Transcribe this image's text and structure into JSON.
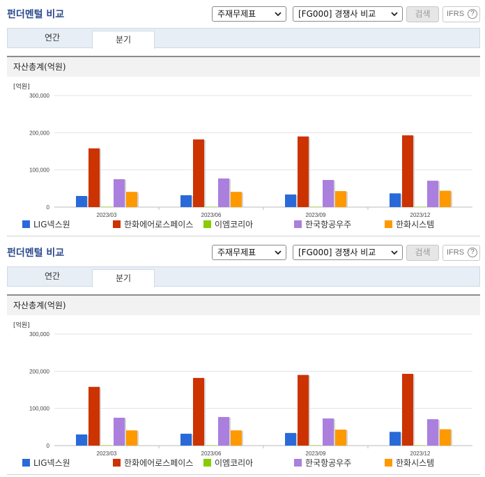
{
  "panels": [
    {
      "title": "펀더멘털 비교",
      "selects": {
        "report": "주재무제표",
        "compare": "[FG000] 경쟁사 비교"
      },
      "search_label": "검색",
      "ifrs_label": "IFRS",
      "tabs": [
        {
          "label": "연간"
        },
        {
          "label": "분기",
          "active": true
        }
      ],
      "section_title": "자산총계(억원)"
    },
    {
      "title": "펀더멘털 비교",
      "selects": {
        "report": "주재무제표",
        "compare": "[FG000] 경쟁사 비교"
      },
      "search_label": "검색",
      "ifrs_label": "IFRS",
      "tabs": [
        {
          "label": "연간"
        },
        {
          "label": "분기",
          "active": true
        }
      ],
      "section_title": "자산총계(억원)"
    }
  ],
  "chart_data": [
    {
      "type": "bar",
      "unit_label": "[억원]",
      "categories": [
        "2023/03",
        "2023/06",
        "2023/09",
        "2023/12"
      ],
      "ylim": [
        0,
        300000
      ],
      "yticks": [
        "0",
        "100,000",
        "200,000",
        "300,000"
      ],
      "grid": true,
      "legend_position": "bottom",
      "series": [
        {
          "name": "LIG넥스원",
          "color": "#2a6ad8",
          "values": [
            30000,
            32000,
            34000,
            37000
          ]
        },
        {
          "name": "한화에어로스페이스",
          "color": "#cc3300",
          "values": [
            158000,
            182000,
            190000,
            193000
          ]
        },
        {
          "name": "이엠코리아",
          "color": "#88cc00",
          "values": [
            1000,
            1000,
            1000,
            1000
          ]
        },
        {
          "name": "한국항공우주",
          "color": "#aa7fdd",
          "values": [
            75000,
            77000,
            73000,
            71000
          ]
        },
        {
          "name": "한화시스템",
          "color": "#ff9900",
          "values": [
            41000,
            41000,
            43000,
            44000
          ]
        }
      ]
    },
    {
      "type": "bar",
      "unit_label": "[억원]",
      "categories": [
        "2023/03",
        "2023/06",
        "2023/09",
        "2023/12"
      ],
      "ylim": [
        0,
        300000
      ],
      "yticks": [
        "0",
        "100,000",
        "200,000",
        "300,000"
      ],
      "grid": true,
      "legend_position": "bottom",
      "series": [
        {
          "name": "LIG넥스원",
          "color": "#2a6ad8",
          "values": [
            30000,
            32000,
            34000,
            37000
          ]
        },
        {
          "name": "한화에어로스페이스",
          "color": "#cc3300",
          "values": [
            158000,
            182000,
            190000,
            193000
          ]
        },
        {
          "name": "이엠코리아",
          "color": "#88cc00",
          "values": [
            1000,
            1000,
            1000,
            1000
          ]
        },
        {
          "name": "한국항공우주",
          "color": "#aa7fdd",
          "values": [
            75000,
            77000,
            73000,
            71000
          ]
        },
        {
          "name": "한화시스템",
          "color": "#ff9900",
          "values": [
            41000,
            41000,
            43000,
            44000
          ]
        }
      ]
    }
  ]
}
